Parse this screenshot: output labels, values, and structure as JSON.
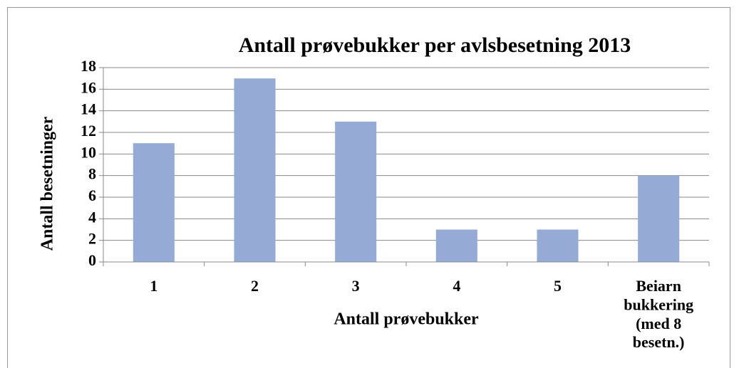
{
  "chart_data": {
    "type": "bar",
    "title": "Antall prøvebukker per avlsbesetning 2013",
    "x_label": "Antall prøvebukker",
    "y_label": "Antall besetninger",
    "categories": [
      "1",
      "2",
      "3",
      "4",
      "5",
      "Beiarn\nbukkering\n(med 8\nbesetn.)"
    ],
    "values": [
      11,
      17,
      13,
      3,
      3,
      8
    ],
    "color": "#95abd5",
    "ylim": [
      0,
      18
    ],
    "yticks": [
      0,
      2,
      4,
      6,
      8,
      10,
      12,
      14,
      16,
      18
    ],
    "grid": true
  }
}
